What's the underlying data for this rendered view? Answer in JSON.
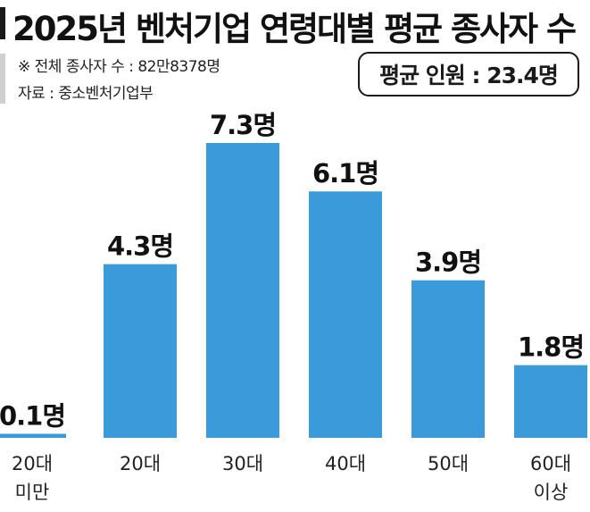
{
  "header": {
    "title": "2025년 벤처기업 연령대별 평균 종사자 수",
    "total_note": "※ 전체 종사자 수 : 82만8378명",
    "source": "자료 : 중소벤처기업부",
    "average_label": "평균 인원 : 23.4명"
  },
  "colors": {
    "bar": "#3b9ad9",
    "text": "#111111"
  },
  "chart_data": {
    "type": "bar",
    "title": "2025년 벤처기업 연령대별 평균 종사자 수",
    "categories": [
      [
        "20대",
        "미만"
      ],
      [
        "20대"
      ],
      [
        "30대"
      ],
      [
        "40대"
      ],
      [
        "50대"
      ],
      [
        "60대",
        "이상"
      ]
    ],
    "values": [
      0.1,
      4.3,
      7.3,
      6.1,
      3.9,
      1.8
    ],
    "value_labels": [
      "0.1명",
      "4.3명",
      "7.3명",
      "6.1명",
      "3.9명",
      "1.8명"
    ],
    "unit": "명",
    "ylim": [
      0,
      7.3
    ],
    "grid": false,
    "legend": "none"
  }
}
